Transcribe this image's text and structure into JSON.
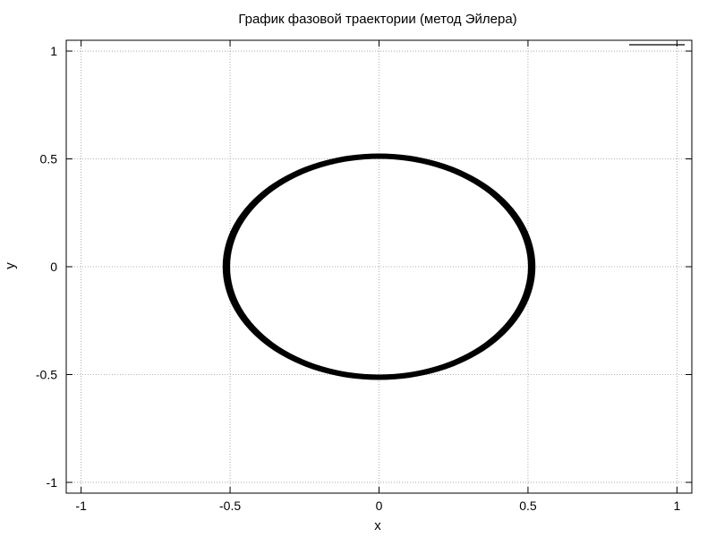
{
  "chart_data": {
    "type": "line",
    "title": "График фазовой траектории (метод Эйлера)",
    "xlabel": "x",
    "ylabel": "y",
    "xlim": [
      -1.05,
      1.05
    ],
    "ylim": [
      -1.05,
      1.05
    ],
    "xticks": [
      -1,
      -0.5,
      0,
      0.5,
      1
    ],
    "yticks": [
      -1,
      -0.5,
      0,
      0.5,
      1
    ],
    "xtick_labels": [
      "-1",
      "-0.5",
      "0",
      "0.5",
      "1"
    ],
    "ytick_labels": [
      "-1",
      "-0.5",
      "0",
      "0.5",
      "1"
    ],
    "grid": true,
    "legend": "top-right",
    "series": [
      {
        "type": "closed-curve",
        "color": "#000000",
        "rx_inner": 0.5,
        "rx_outer": 0.525,
        "ry_inner": 0.5,
        "ry_outer": 0.525
      }
    ]
  }
}
